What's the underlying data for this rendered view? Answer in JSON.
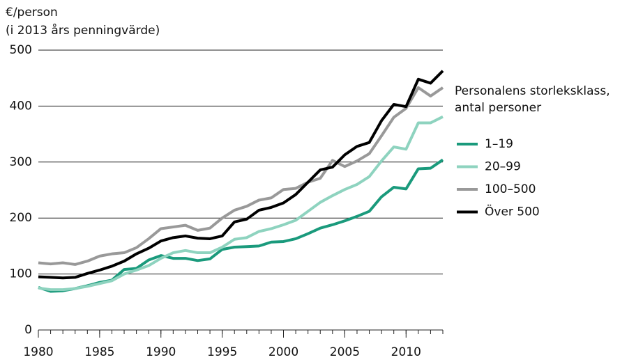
{
  "chart_data": {
    "type": "line",
    "ylabel": [
      "€/person",
      "(i 2013 års penningvärde)"
    ],
    "legend_title": [
      "Personalens storleksklass,",
      "antal personer"
    ],
    "legend": "right",
    "x": [
      1980,
      1981,
      1982,
      1983,
      1984,
      1985,
      1986,
      1987,
      1988,
      1989,
      1990,
      1991,
      1992,
      1993,
      1994,
      1995,
      1996,
      1997,
      1998,
      1999,
      2000,
      2001,
      2002,
      2003,
      2004,
      2005,
      2006,
      2007,
      2008,
      2009,
      2010,
      2011,
      2012,
      2013
    ],
    "xlim": [
      1980,
      2013
    ],
    "xticks": [
      1980,
      1985,
      1990,
      1995,
      2000,
      2005,
      2010
    ],
    "ylim": [
      0,
      500
    ],
    "yticks": [
      0,
      100,
      200,
      300,
      400,
      500
    ],
    "grid": true,
    "series": [
      {
        "name": "1–19",
        "color": "#1a9a7c",
        "values": [
          76,
          69,
          70,
          74,
          79,
          85,
          89,
          108,
          110,
          125,
          133,
          128,
          128,
          124,
          127,
          144,
          148,
          149,
          150,
          157,
          158,
          163,
          172,
          182,
          188,
          195,
          203,
          212,
          238,
          255,
          252,
          288,
          289,
          304
        ]
      },
      {
        "name": "20–99",
        "color": "#8ed3bf",
        "values": [
          75,
          72,
          72,
          74,
          78,
          83,
          88,
          100,
          107,
          115,
          128,
          138,
          142,
          138,
          138,
          148,
          162,
          165,
          176,
          181,
          188,
          196,
          212,
          228,
          240,
          251,
          260,
          274,
          302,
          327,
          323,
          370,
          370,
          381
        ]
      },
      {
        "name": "100–500",
        "color": "#999999",
        "values": [
          120,
          118,
          120,
          117,
          123,
          132,
          136,
          138,
          147,
          163,
          181,
          184,
          187,
          178,
          182,
          200,
          214,
          221,
          232,
          236,
          251,
          253,
          264,
          271,
          303,
          292,
          302,
          315,
          347,
          380,
          396,
          433,
          418,
          433
        ]
      },
      {
        "name": "Över 500",
        "color": "#000000",
        "values": [
          95,
          94,
          93,
          94,
          101,
          107,
          114,
          123,
          136,
          146,
          159,
          165,
          168,
          164,
          163,
          168,
          193,
          198,
          214,
          219,
          227,
          242,
          264,
          286,
          291,
          313,
          328,
          335,
          374,
          403,
          399,
          448,
          441,
          463
        ]
      }
    ]
  }
}
